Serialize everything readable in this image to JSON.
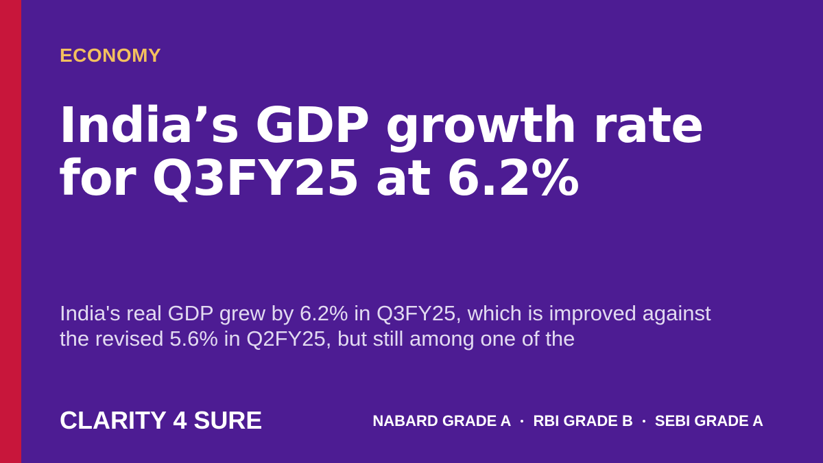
{
  "category": "ECONOMY",
  "headline": "India’s GDP growth rate for Q3FY25 at 6.2%",
  "excerpt": "India's real GDP grew by 6.2% in Q3FY25, which is improved against the revised 5.6% in Q2FY25, but still among one of the",
  "brand": "CLARITY 4 SURE",
  "exam_tags": [
    "NABARD GRADE A",
    "RBI GRADE B",
    "SEBI GRADE A"
  ],
  "colors": {
    "background": "#4d1c93",
    "accent_bar": "#c8163b",
    "category": "#f3c05e",
    "text": "#ffffff"
  }
}
